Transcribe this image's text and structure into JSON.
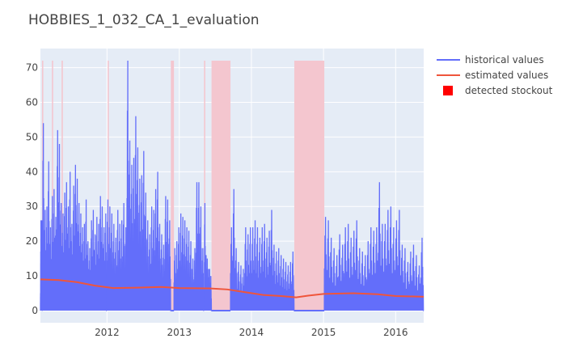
{
  "colors": {
    "plot_background": "#e5ecf6",
    "gridline": "#ffffff",
    "historical": "#636efa",
    "estimated": "#ef553b",
    "stockout": "#ff0000",
    "stockout_shade": "#f4c6cf"
  },
  "chart_data": {
    "type": "line",
    "title": "HOBBIES_1_032_CA_1_evaluation",
    "xlabel": "",
    "ylabel": "",
    "xlim": [
      "2011-01-29",
      "2016-05-22"
    ],
    "ylim": [
      -3.5,
      75.5
    ],
    "grid": true,
    "legend_position": "top-right",
    "x_ticks": [
      {
        "date": "2012-01-01",
        "label": "2012"
      },
      {
        "date": "2013-01-01",
        "label": "2013"
      },
      {
        "date": "2014-01-01",
        "label": "2014"
      },
      {
        "date": "2015-01-01",
        "label": "2015"
      },
      {
        "date": "2016-01-01",
        "label": "2016"
      }
    ],
    "y_ticks": [
      0,
      10,
      20,
      30,
      40,
      50,
      60,
      70
    ],
    "series": [
      {
        "name": "historical values",
        "kind": "line",
        "segments": [
          {
            "start": "2011-01-29",
            "end": "2011-02-08",
            "low": 0,
            "peaks": [
              5,
              17,
              26,
              9,
              15,
              20,
              12,
              26,
              8,
              18
            ]
          },
          {
            "start": "2011-02-09",
            "end": "2011-12-31",
            "low": 0,
            "peaks": [
              54,
              29,
              30,
              43,
              24,
              33,
              35,
              27,
              52,
              48,
              31,
              28,
              34,
              37,
              30,
              40,
              25,
              36,
              42,
              38,
              31,
              28,
              24,
              25,
              32,
              20,
              18,
              26,
              29,
              22,
              27,
              25,
              33,
              30,
              24,
              28
            ]
          },
          {
            "start": "2012-01-01",
            "end": "2012-11-19",
            "low": 0,
            "peaks": [
              32,
              30,
              28,
              25,
              21,
              29,
              25,
              26,
              31,
              24,
              72,
              49,
              42,
              44,
              56,
              47,
              38,
              39,
              46,
              34,
              26,
              22,
              30,
              29,
              35,
              40,
              25,
              22,
              19,
              33,
              32,
              26
            ]
          },
          {
            "start": "2012-12-05",
            "end": "2013-05-06",
            "low": 0,
            "peaks": [
              18,
              20,
              24,
              28,
              27,
              26,
              24,
              23,
              20,
              15,
              18,
              37,
              37,
              30,
              18
            ]
          },
          {
            "start": "2013-05-08",
            "end": "2013-06-13",
            "low": 0,
            "peaks": [
              31,
              16,
              15,
              12,
              12,
              10
            ]
          },
          {
            "start": "2013-09-17",
            "end": "2014-08-06",
            "low": 0,
            "peaks": [
              24,
              35,
              18,
              14,
              13,
              12,
              24,
              22,
              24,
              24,
              26,
              24,
              21,
              24,
              25,
              21,
              23,
              29,
              19,
              17,
              18,
              16,
              15,
              14,
              13,
              14,
              17
            ]
          },
          {
            "start": "2015-01-05",
            "end": "2016-05-22",
            "low": 0,
            "peaks": [
              27,
              26,
              21,
              18,
              16,
              22,
              19,
              24,
              25,
              21,
              23,
              26,
              18,
              17,
              16,
              20,
              24,
              23,
              24,
              37,
              25,
              25,
              29,
              30,
              24,
              26,
              29,
              19,
              18,
              14,
              17,
              19,
              16,
              13,
              21
            ]
          }
        ],
        "zero_periods": [
          {
            "start": "2012-11-19",
            "end": "2012-12-05"
          },
          {
            "start": "2013-06-13",
            "end": "2013-09-17"
          },
          {
            "start": "2014-08-06",
            "end": "2015-01-05"
          }
        ]
      },
      {
        "name": "estimated values",
        "kind": "line",
        "points": [
          {
            "x": "2011-01-29",
            "y": 9.0
          },
          {
            "x": "2011-05-01",
            "y": 8.8
          },
          {
            "x": "2011-08-01",
            "y": 8.2
          },
          {
            "x": "2011-11-01",
            "y": 7.2
          },
          {
            "x": "2012-02-01",
            "y": 6.5
          },
          {
            "x": "2012-06-01",
            "y": 6.6
          },
          {
            "x": "2012-10-01",
            "y": 6.8
          },
          {
            "x": "2013-01-01",
            "y": 6.5
          },
          {
            "x": "2013-06-01",
            "y": 6.4
          },
          {
            "x": "2013-09-01",
            "y": 6.1
          },
          {
            "x": "2013-12-01",
            "y": 5.3
          },
          {
            "x": "2014-03-01",
            "y": 4.5
          },
          {
            "x": "2014-06-01",
            "y": 4.2
          },
          {
            "x": "2014-08-15",
            "y": 3.8
          },
          {
            "x": "2014-10-15",
            "y": 4.3
          },
          {
            "x": "2015-01-01",
            "y": 4.8
          },
          {
            "x": "2015-06-01",
            "y": 5.0
          },
          {
            "x": "2015-10-01",
            "y": 4.7
          },
          {
            "x": "2016-01-01",
            "y": 4.2
          },
          {
            "x": "2016-05-22",
            "y": 4.0
          }
        ]
      },
      {
        "name": "detected stockout",
        "kind": "bar",
        "value": 72,
        "periods": [
          {
            "start": "2011-02-06",
            "end": "2011-02-12"
          },
          {
            "start": "2011-03-28",
            "end": "2011-04-03"
          },
          {
            "start": "2011-05-16",
            "end": "2011-05-22"
          },
          {
            "start": "2012-01-04",
            "end": "2012-01-10"
          },
          {
            "start": "2012-11-19",
            "end": "2012-12-05"
          },
          {
            "start": "2013-05-06",
            "end": "2013-05-12"
          },
          {
            "start": "2013-06-13",
            "end": "2013-09-17"
          },
          {
            "start": "2014-08-06",
            "end": "2015-01-05"
          }
        ]
      }
    ]
  }
}
